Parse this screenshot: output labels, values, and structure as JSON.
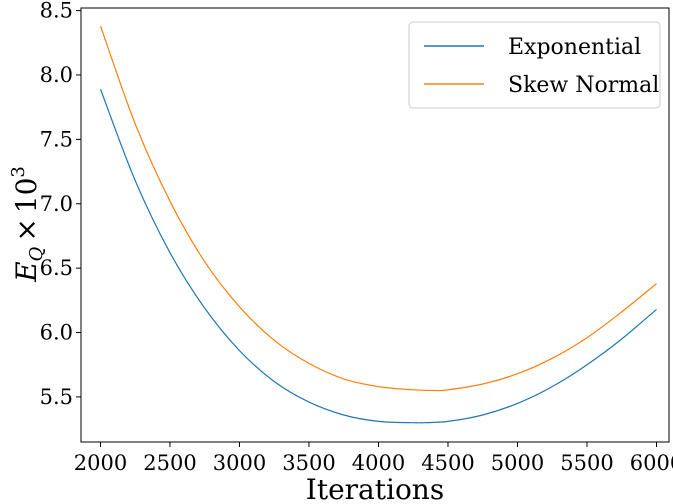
{
  "chart_data": {
    "type": "line",
    "xlabel": "Iterations",
    "ylabel": {
      "main": "E",
      "subscript": "Q",
      "times": "×",
      "base": "10",
      "exponent": "3"
    },
    "xlim": [
      1860,
      6090
    ],
    "ylim": [
      5.15,
      8.52
    ],
    "xticks": [
      2000,
      2500,
      3000,
      3500,
      4000,
      4500,
      5000,
      5500,
      6000
    ],
    "yticks": [
      5.5,
      6.0,
      6.5,
      7.0,
      7.5,
      8.0,
      8.5
    ],
    "ytick_labels": [
      "5.5",
      "6.0",
      "6.5",
      "7.0",
      "7.5",
      "8.0",
      "8.5"
    ],
    "grid": false,
    "legend_position": "top-right",
    "series": [
      {
        "name": "Exponential",
        "color": "#1f77b4",
        "x": [
          2000,
          2250,
          2500,
          2750,
          3000,
          3250,
          3500,
          3750,
          4000,
          4250,
          4330,
          4500,
          4750,
          5000,
          5250,
          5500,
          5750,
          6000
        ],
        "y": [
          7.89,
          7.18,
          6.62,
          6.19,
          5.86,
          5.62,
          5.46,
          5.36,
          5.31,
          5.3,
          5.3,
          5.31,
          5.36,
          5.45,
          5.58,
          5.75,
          5.95,
          6.18
        ]
      },
      {
        "name": "Skew Normal",
        "color": "#ff7f0e",
        "x": [
          2000,
          2250,
          2500,
          2750,
          3000,
          3250,
          3500,
          3750,
          4000,
          4250,
          4420,
          4500,
          4750,
          5000,
          5250,
          5500,
          5750,
          6000
        ],
        "y": [
          8.38,
          7.62,
          7.02,
          6.55,
          6.2,
          5.94,
          5.76,
          5.64,
          5.58,
          5.555,
          5.55,
          5.555,
          5.6,
          5.68,
          5.8,
          5.96,
          6.16,
          6.38
        ]
      }
    ]
  }
}
